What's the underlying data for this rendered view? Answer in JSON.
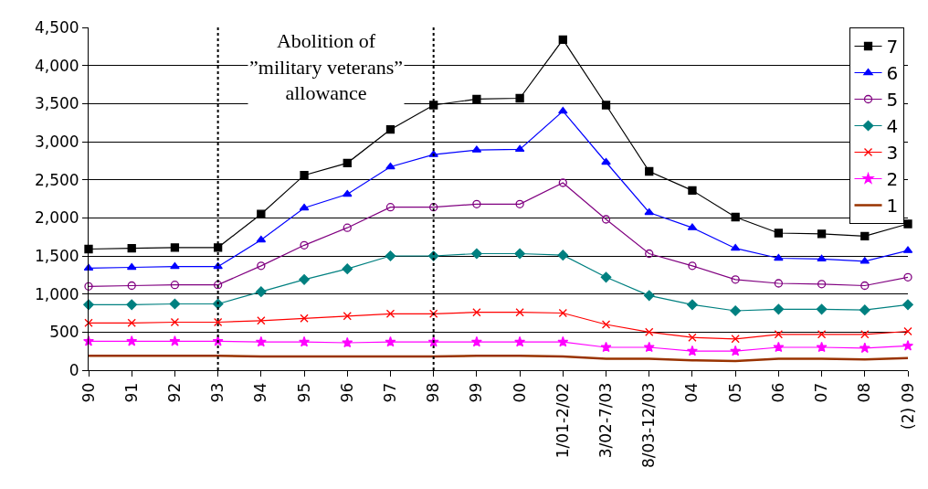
{
  "chart_data": {
    "type": "line",
    "categories": [
      "90",
      "91",
      "92",
      "93",
      "94",
      "95",
      "96",
      "97",
      "98",
      "99",
      "00",
      "1/01-2/02",
      "3/02-7/03",
      "8/03-12/03",
      "04",
      "05",
      "06",
      "07",
      "08",
      "(2) 09"
    ],
    "series": [
      {
        "name": "7",
        "color": "#000000",
        "marker": "square",
        "values": [
          1590,
          1600,
          1610,
          1610,
          2050,
          2560,
          2720,
          3160,
          3480,
          3560,
          3570,
          4340,
          3480,
          2610,
          2360,
          2010,
          1800,
          1790,
          1760,
          1920
        ]
      },
      {
        "name": "6",
        "color": "#0000ff",
        "marker": "triangle",
        "values": [
          1340,
          1350,
          1360,
          1360,
          1710,
          2130,
          2310,
          2670,
          2830,
          2890,
          2900,
          3400,
          2730,
          2070,
          1870,
          1600,
          1470,
          1460,
          1430,
          1570
        ]
      },
      {
        "name": "5",
        "color": "#800080",
        "marker": "circle",
        "values": [
          1100,
          1110,
          1120,
          1120,
          1370,
          1640,
          1870,
          2140,
          2140,
          2180,
          2180,
          2460,
          1980,
          1530,
          1370,
          1190,
          1140,
          1130,
          1110,
          1220
        ]
      },
      {
        "name": "4",
        "color": "#008080",
        "marker": "diamond",
        "values": [
          860,
          860,
          870,
          870,
          1030,
          1190,
          1330,
          1500,
          1500,
          1530,
          1530,
          1510,
          1220,
          980,
          860,
          780,
          800,
          800,
          790,
          860
        ]
      },
      {
        "name": "3",
        "color": "#ff0000",
        "marker": "cross",
        "values": [
          620,
          620,
          630,
          630,
          650,
          680,
          710,
          740,
          740,
          760,
          760,
          750,
          600,
          500,
          430,
          410,
          470,
          470,
          470,
          510
        ]
      },
      {
        "name": "2",
        "color": "#ff00ff",
        "marker": "star",
        "values": [
          380,
          380,
          380,
          380,
          370,
          370,
          360,
          370,
          370,
          370,
          370,
          370,
          300,
          300,
          250,
          250,
          300,
          300,
          290,
          320
        ]
      },
      {
        "name": "1",
        "color": "#993300",
        "marker": "none",
        "values": [
          190,
          190,
          190,
          190,
          180,
          180,
          180,
          180,
          180,
          190,
          190,
          180,
          150,
          150,
          130,
          120,
          150,
          150,
          140,
          160
        ]
      }
    ],
    "ylim": [
      0,
      4500
    ],
    "yticks": [
      {
        "value": 0,
        "label": "0"
      },
      {
        "value": 500,
        "label": "500"
      },
      {
        "value": 1000,
        "label": "1,000"
      },
      {
        "value": 1500,
        "label": "1,500"
      },
      {
        "value": 2000,
        "label": "2,000"
      },
      {
        "value": 2500,
        "label": "2,500"
      },
      {
        "value": 3000,
        "label": "3,000"
      },
      {
        "value": 3500,
        "label": "3,500"
      },
      {
        "value": 4000,
        "label": "4,000"
      },
      {
        "value": 4500,
        "label": "4,500"
      }
    ],
    "ref_lines": [
      {
        "axis": "x",
        "value": "93",
        "line_style": "dotted",
        "color": "#000000"
      },
      {
        "axis": "x",
        "value": "98",
        "line_style": "dotted",
        "color": "#000000"
      }
    ],
    "annotations": [
      "Abolition of\n”military veterans”\nallowance"
    ],
    "grid": "y",
    "legend": "top right",
    "line_style": "solid"
  }
}
